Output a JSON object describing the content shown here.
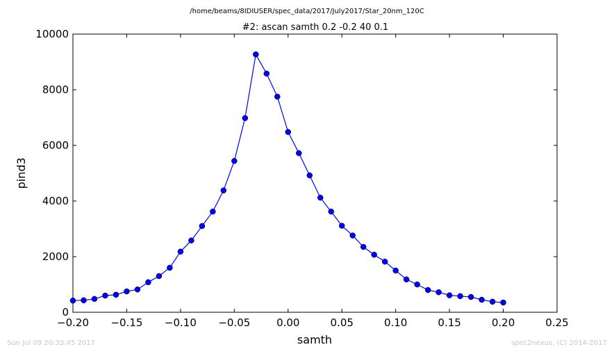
{
  "header": {
    "path": "/home/beams/8IDIUSER/spec_data/2017/July2017/Star_20nm_120C"
  },
  "footer": {
    "timestamp": "Sun Jul 09 20:33:45 2017",
    "credit": "spec2nexus, (C) 2014-2017"
  },
  "chart_data": {
    "type": "line",
    "title": "#2: ascan  samth 0.2 -0.2  40 0.1",
    "xlabel": "samth",
    "ylabel": "pind3",
    "xlim": [
      -0.2,
      0.25
    ],
    "ylim": [
      0,
      10000
    ],
    "xticks": [
      -0.2,
      -0.15,
      -0.1,
      -0.05,
      0.0,
      0.05,
      0.1,
      0.15,
      0.2,
      0.25
    ],
    "xtick_labels": [
      "−0.20",
      "−0.15",
      "−0.10",
      "−0.05",
      "0.00",
      "0.05",
      "0.10",
      "0.15",
      "0.20",
      "0.25"
    ],
    "yticks": [
      0,
      2000,
      4000,
      6000,
      8000,
      10000
    ],
    "ytick_labels": [
      "0",
      "2000",
      "4000",
      "6000",
      "8000",
      "10000"
    ],
    "grid": false,
    "line_color": "#0000ff",
    "marker": "circle",
    "series": [
      {
        "x": [
          -0.2,
          -0.19,
          -0.18,
          -0.17,
          -0.16,
          -0.15,
          -0.14,
          -0.13,
          -0.12,
          -0.11,
          -0.1,
          -0.09,
          -0.08,
          -0.07,
          -0.06,
          -0.05,
          -0.04,
          -0.03,
          -0.02,
          -0.01,
          0.0,
          0.01,
          0.02,
          0.03,
          0.04,
          0.05,
          0.06,
          0.07,
          0.08,
          0.09,
          0.1,
          0.11,
          0.12,
          0.13,
          0.14,
          0.15,
          0.16,
          0.17,
          0.18,
          0.19,
          0.2
        ],
        "y": [
          420,
          430,
          480,
          600,
          630,
          750,
          820,
          1080,
          1300,
          1600,
          2180,
          2580,
          3100,
          3620,
          4380,
          5440,
          6980,
          9270,
          8580,
          7750,
          6480,
          5720,
          4920,
          4120,
          3620,
          3110,
          2760,
          2350,
          2070,
          1820,
          1500,
          1180,
          1000,
          800,
          720,
          610,
          580,
          550,
          450,
          380,
          350
        ]
      }
    ]
  }
}
